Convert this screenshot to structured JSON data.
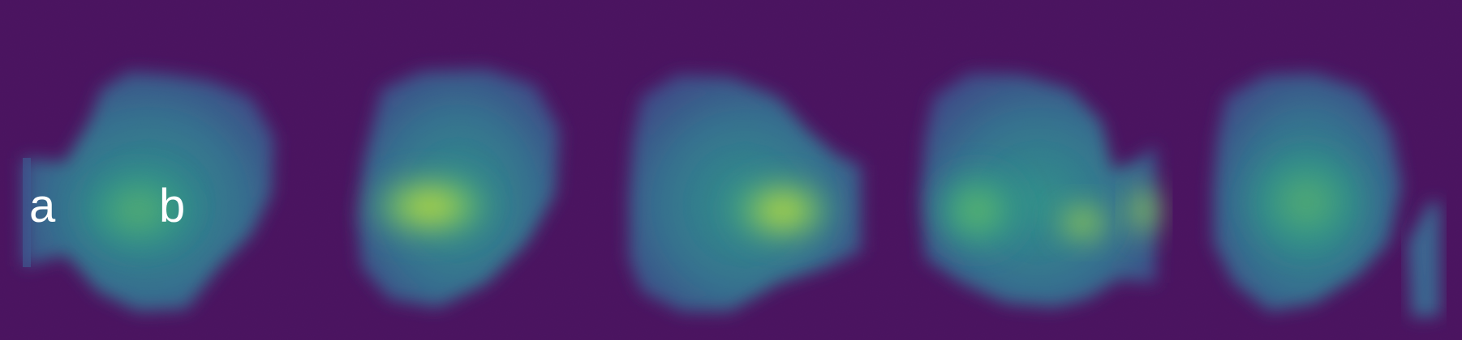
{
  "figure": {
    "panel_count": 5,
    "labels": {
      "a": "a",
      "b": "b"
    },
    "colors": {
      "background": "#4a1360",
      "low": "#3e5a93",
      "mid": "#2d8f8b",
      "high": "#d5e12e"
    }
  }
}
